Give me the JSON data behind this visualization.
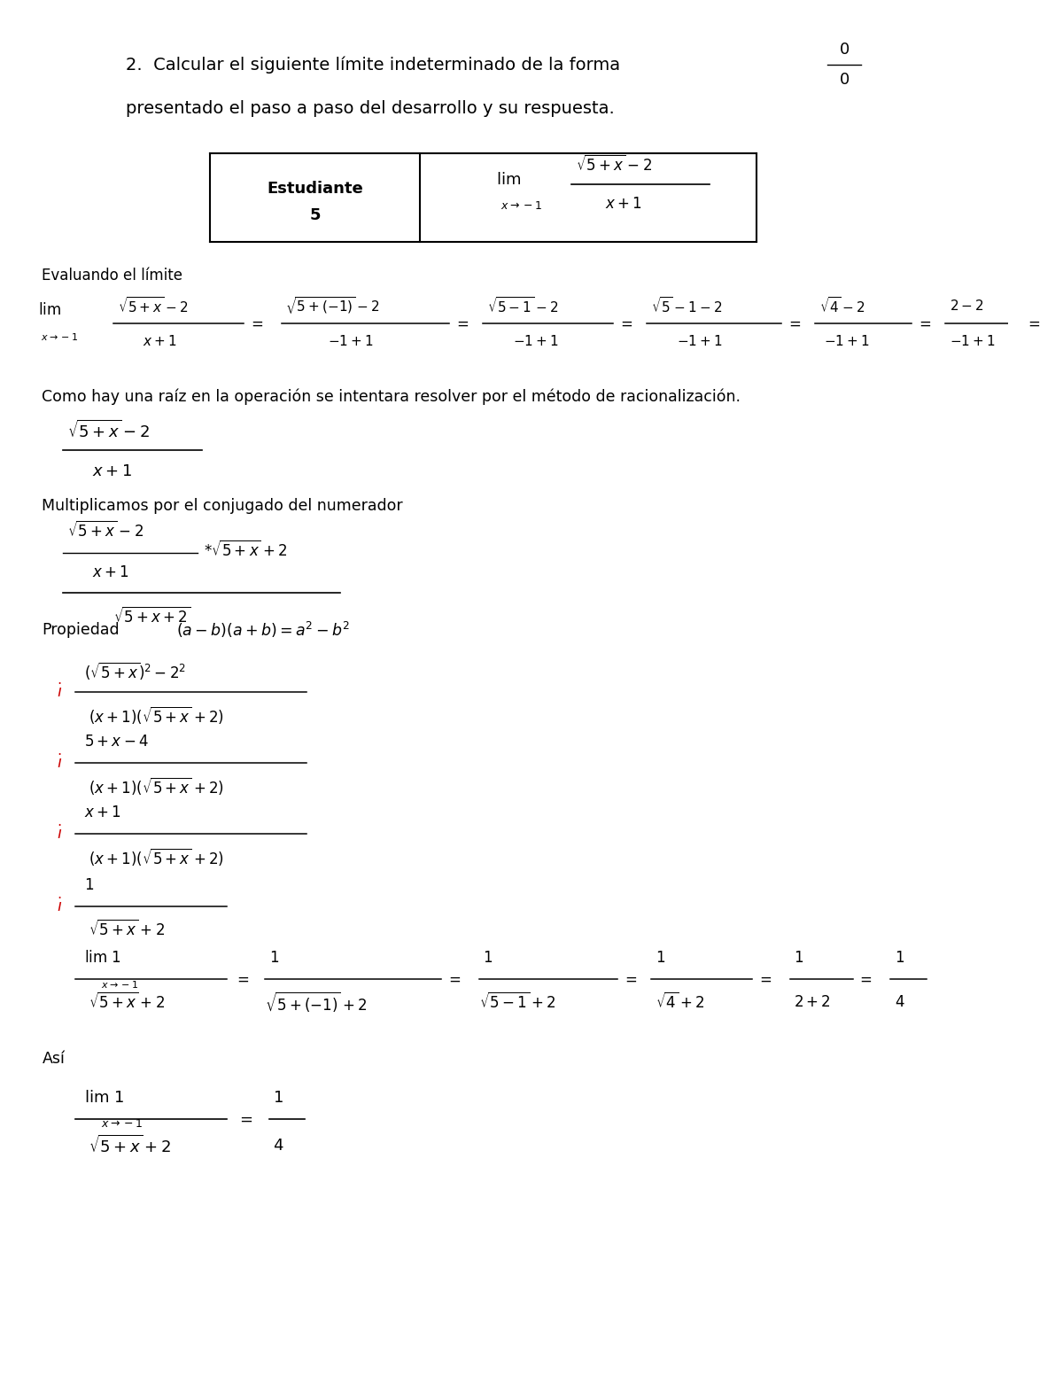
{
  "bg_color": "#ffffff",
  "text_color": "#000000",
  "red_color": "#cc0000",
  "title_line1": "2.  Calcular el siguiente límite indeterminado de la forma",
  "title_line2": "presentado el paso a paso del desarrollo y su respuesta.",
  "section_evaluando": "Evaluando el límite",
  "section_como": "Como hay una raíz en la operación se intentara resolver por el método de racionalización.",
  "section_multiplicamos": "Multiplicamos por el conjugado del numerador",
  "section_propiedad": "Propiedad",
  "section_asi": "Así"
}
